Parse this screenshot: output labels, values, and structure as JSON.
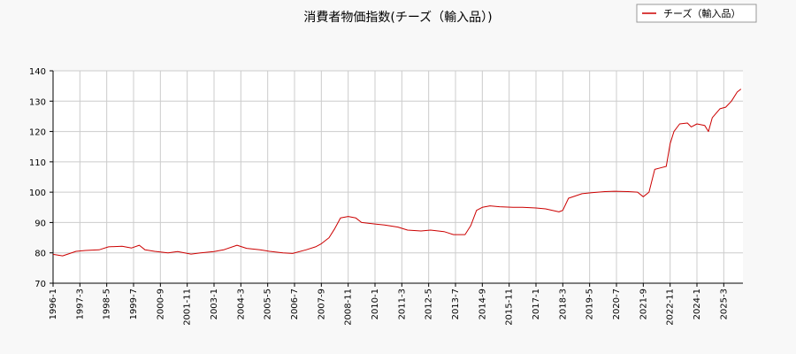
{
  "chart_data": {
    "type": "line",
    "title": "消費者物価指数(チーズ（輸入品）)",
    "xlabel": "",
    "ylabel": "",
    "ylim": [
      70,
      140
    ],
    "yticks": [
      70,
      80,
      90,
      100,
      110,
      120,
      130,
      140
    ],
    "xlim": [
      "1996-01",
      "2026-01"
    ],
    "xticks": [
      "1996-1",
      "1997-3",
      "1998-5",
      "1999-7",
      "2000-9",
      "2001-11",
      "2003-1",
      "2004-3",
      "2005-5",
      "2006-7",
      "2007-9",
      "2008-11",
      "2010-1",
      "2011-3",
      "2012-5",
      "2013-7",
      "2014-9",
      "2015-11",
      "2017-1",
      "2018-3",
      "2019-5",
      "2020-7",
      "2021-9",
      "2022-11",
      "2024-1",
      "2025-3"
    ],
    "grid": true,
    "legend_position": "top-right",
    "series": [
      {
        "name": "チーズ（輸入品）",
        "color": "#cc0000",
        "points": [
          [
            "1996-01",
            79.5
          ],
          [
            "1996-06",
            79.0
          ],
          [
            "1997-01",
            80.5
          ],
          [
            "1997-06",
            80.8
          ],
          [
            "1998-01",
            81.0
          ],
          [
            "1998-06",
            82.0
          ],
          [
            "1999-01",
            82.2
          ],
          [
            "1999-06",
            81.6
          ],
          [
            "1999-10",
            82.5
          ],
          [
            "2000-01",
            81.0
          ],
          [
            "2000-06",
            80.5
          ],
          [
            "2001-01",
            80.0
          ],
          [
            "2001-06",
            80.4
          ],
          [
            "2002-01",
            79.6
          ],
          [
            "2002-06",
            80.0
          ],
          [
            "2003-01",
            80.4
          ],
          [
            "2003-06",
            81.0
          ],
          [
            "2004-01",
            82.5
          ],
          [
            "2004-06",
            81.5
          ],
          [
            "2005-01",
            81.0
          ],
          [
            "2005-06",
            80.5
          ],
          [
            "2006-01",
            80.0
          ],
          [
            "2006-06",
            79.8
          ],
          [
            "2007-01",
            81.0
          ],
          [
            "2007-06",
            82.0
          ],
          [
            "2007-09",
            83.0
          ],
          [
            "2008-01",
            85.0
          ],
          [
            "2008-04",
            88.0
          ],
          [
            "2008-07",
            91.5
          ],
          [
            "2008-11",
            92.0
          ],
          [
            "2009-03",
            91.5
          ],
          [
            "2009-06",
            90.0
          ],
          [
            "2010-01",
            89.5
          ],
          [
            "2010-06",
            89.2
          ],
          [
            "2011-01",
            88.5
          ],
          [
            "2011-06",
            87.5
          ],
          [
            "2012-01",
            87.2
          ],
          [
            "2012-06",
            87.5
          ],
          [
            "2013-01",
            87.0
          ],
          [
            "2013-06",
            86.0
          ],
          [
            "2013-12",
            86.0
          ],
          [
            "2014-03",
            89.0
          ],
          [
            "2014-06",
            94.0
          ],
          [
            "2014-09",
            95.0
          ],
          [
            "2015-01",
            95.5
          ],
          [
            "2015-06",
            95.2
          ],
          [
            "2016-01",
            95.0
          ],
          [
            "2016-06",
            95.0
          ],
          [
            "2017-01",
            94.8
          ],
          [
            "2017-06",
            94.5
          ],
          [
            "2018-01",
            93.5
          ],
          [
            "2018-03",
            94.0
          ],
          [
            "2018-06",
            98.0
          ],
          [
            "2019-01",
            99.5
          ],
          [
            "2019-06",
            99.8
          ],
          [
            "2020-01",
            100.2
          ],
          [
            "2020-06",
            100.3
          ],
          [
            "2021-01",
            100.2
          ],
          [
            "2021-06",
            100.0
          ],
          [
            "2021-09",
            98.5
          ],
          [
            "2021-12",
            100.0
          ],
          [
            "2022-03",
            107.5
          ],
          [
            "2022-06",
            108.0
          ],
          [
            "2022-09",
            108.5
          ],
          [
            "2022-11",
            116.0
          ],
          [
            "2023-01",
            120.0
          ],
          [
            "2023-04",
            122.5
          ],
          [
            "2023-08",
            122.8
          ],
          [
            "2023-10",
            121.5
          ],
          [
            "2024-01",
            122.5
          ],
          [
            "2024-05",
            122.0
          ],
          [
            "2024-07",
            120.0
          ],
          [
            "2024-09",
            124.5
          ],
          [
            "2025-01",
            127.5
          ],
          [
            "2025-04",
            128.0
          ],
          [
            "2025-07",
            130.0
          ],
          [
            "2025-10",
            133.0
          ],
          [
            "2025-12",
            134.0
          ]
        ]
      }
    ]
  }
}
